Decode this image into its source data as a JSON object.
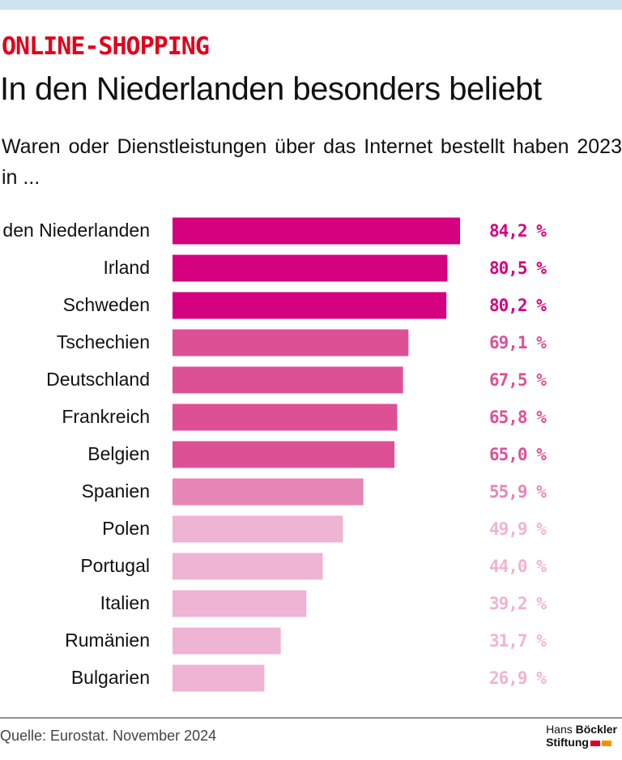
{
  "chart_data": {
    "type": "bar",
    "orientation": "horizontal",
    "kicker": "ONLINE-SHOPPING",
    "title": "In den Niederlanden besonders beliebt",
    "subtitle": "Waren oder Dienstleistungen über das Internet bestellt haben 2023 in ...",
    "categories": [
      "in den Niederlanden",
      "Irland",
      "Schweden",
      "Tschechien",
      "Deutschland",
      "Frankreich",
      "Belgien",
      "Spanien",
      "Polen",
      "Portugal",
      "Italien",
      "Rumänien",
      "Bulgarien"
    ],
    "values": [
      84.2,
      80.5,
      80.2,
      69.1,
      67.5,
      65.8,
      65.0,
      55.9,
      49.9,
      44.0,
      39.2,
      31.7,
      26.9
    ],
    "value_labels": [
      "84,2 %",
      "80,5 %",
      "80,2 %",
      "69,1 %",
      "67,5 %",
      "65,8 %",
      "65,0 %",
      "55,9 %",
      "49,9 %",
      "44,0 %",
      "39,2 %",
      "31,7 %",
      "26,9 %"
    ],
    "colors": [
      "#d5007d",
      "#d5007d",
      "#d5007d",
      "#de5096",
      "#de5096",
      "#de5096",
      "#de5096",
      "#e785b6",
      "#efb3d3",
      "#efb3d3",
      "#efb3d3",
      "#efb3d3",
      "#efb3d3"
    ],
    "source": "Quelle: Eurostat. November 2024",
    "logo": [
      "Hans",
      "Böckler",
      "Stiftung"
    ]
  }
}
